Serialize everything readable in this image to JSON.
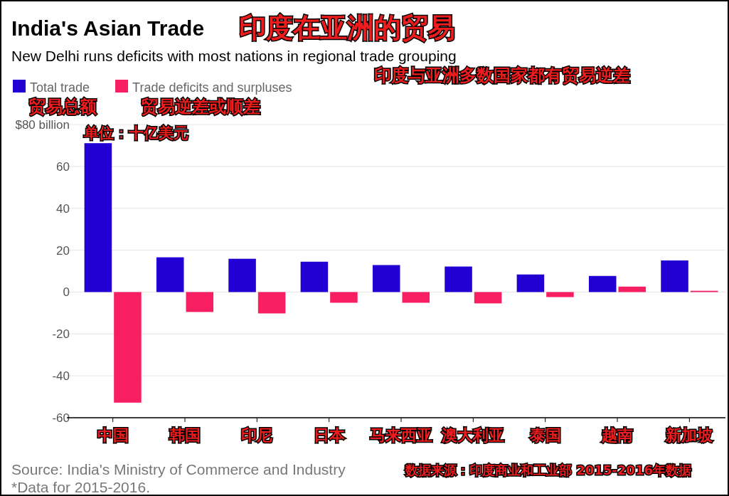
{
  "chart_data": {
    "type": "bar",
    "title": "India's Asian Trade",
    "subtitle": "New Delhi runs deficits with most nations in regional trade grouping",
    "categories": [
      "中国",
      "韩国",
      "印尼",
      "日本",
      "马来西亚",
      "澳大利亚",
      "泰国",
      "越南",
      "新加坡"
    ],
    "series": [
      {
        "name": "Total trade",
        "color": "#2200d4",
        "values": [
          71.1,
          16.6,
          15.9,
          14.5,
          12.9,
          12.2,
          8.4,
          7.7,
          15.1
        ]
      },
      {
        "name": "Trade deficits and surpluses",
        "color": "#f81e62",
        "values": [
          -52.8,
          -9.5,
          -10.2,
          -5.1,
          -5.1,
          -5.4,
          -2.4,
          2.6,
          0.6
        ]
      }
    ],
    "ylim": [
      -60,
      80
    ],
    "yticks": [
      {
        "value": 80,
        "label": "$80 billion"
      },
      60,
      40,
      20,
      0,
      -20,
      -40,
      -60
    ],
    "grid": "y",
    "legend": "top left",
    "annotations": [
      "印度在亚洲的贸易",
      "印度与亚洲多数国家都有贸易逆差",
      "贸易总额",
      "贸易逆差或顺差",
      "单位：十亿美元",
      "Source: India's Ministry of Commerce and Industry",
      "*Data for 2015-2016.",
      "数据来源：印度商业和工业部 2015-2016年数据"
    ]
  }
}
